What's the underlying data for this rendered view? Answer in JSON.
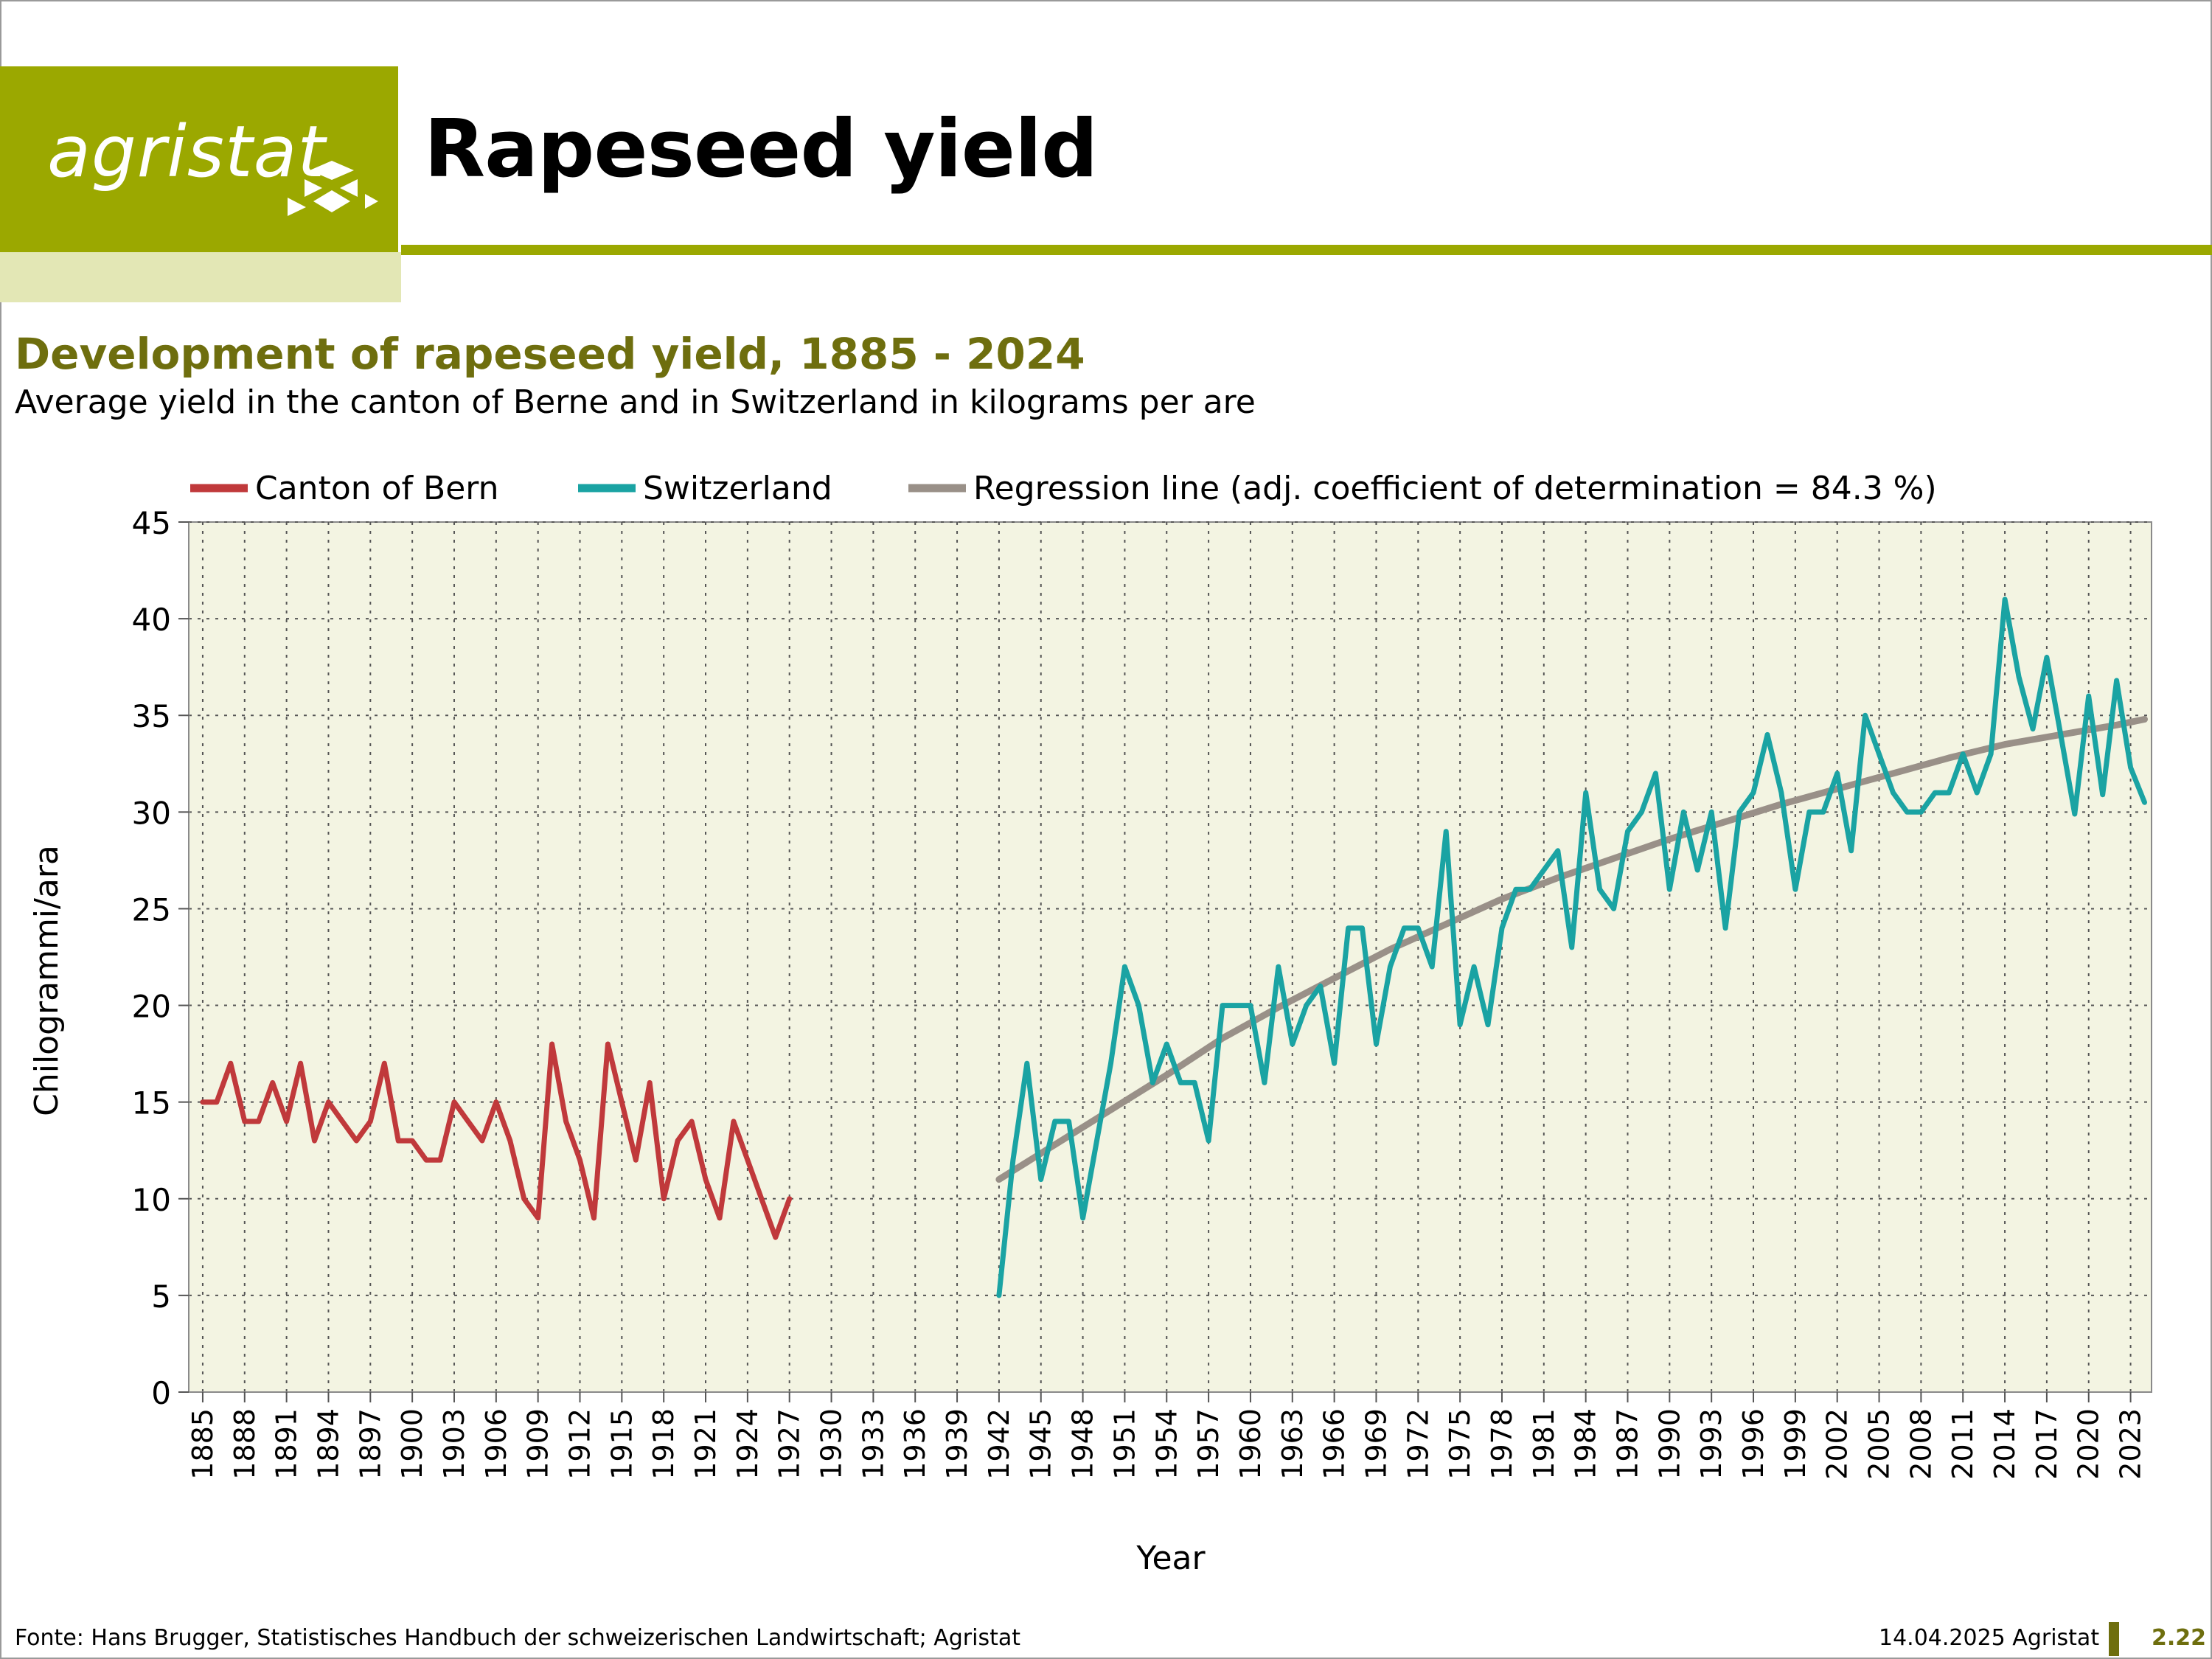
{
  "header": {
    "logo_text": "agristat",
    "page_title": "Rapeseed yield",
    "brand_color": "#9ba800"
  },
  "chart_data": {
    "type": "line",
    "title": "Development of rapeseed yield, 1885 - 2024",
    "subtitle": "Average yield in the canton of Berne and in Switzerland in kilograms per are",
    "xlabel": "Year",
    "ylabel": "Chilogrammi/ara",
    "xlim": [
      1884,
      2024.5
    ],
    "ylim": [
      0,
      45
    ],
    "yticks": [
      0,
      5,
      10,
      15,
      20,
      25,
      30,
      35,
      40,
      45
    ],
    "xtick_start": 1885,
    "xtick_step": 3,
    "xtick_end": 2023,
    "grid": true,
    "legend_position": "top",
    "series": [
      {
        "name": "Canton of Bern",
        "color": "#c0393b",
        "x": [
          1885,
          1886,
          1887,
          1888,
          1889,
          1890,
          1891,
          1892,
          1893,
          1894,
          1895,
          1896,
          1897,
          1898,
          1899,
          1900,
          1901,
          1902,
          1903,
          1904,
          1905,
          1906,
          1907,
          1908,
          1909,
          1910,
          1911,
          1912,
          1913,
          1914,
          1915,
          1916,
          1917,
          1918,
          1919,
          1920,
          1921,
          1922,
          1923,
          1924,
          1925,
          1926,
          1927
        ],
        "y": [
          15,
          15,
          17,
          14,
          14,
          16,
          14,
          17,
          13,
          15,
          14,
          13,
          14,
          17,
          13,
          13,
          12,
          12,
          15,
          14,
          13,
          15,
          13,
          10,
          9,
          18,
          14,
          12,
          9,
          18,
          15,
          12,
          16,
          10,
          13,
          14,
          11,
          9,
          14,
          12,
          10,
          8,
          10
        ]
      },
      {
        "name": "Switzerland",
        "color": "#1aa3a3",
        "x": [
          1942,
          1943,
          1944,
          1945,
          1946,
          1947,
          1948,
          1949,
          1950,
          1951,
          1952,
          1953,
          1954,
          1955,
          1956,
          1957,
          1958,
          1959,
          1960,
          1961,
          1962,
          1963,
          1964,
          1965,
          1966,
          1967,
          1968,
          1969,
          1970,
          1971,
          1972,
          1973,
          1974,
          1975,
          1976,
          1977,
          1978,
          1979,
          1980,
          1981,
          1982,
          1983,
          1984,
          1985,
          1986,
          1987,
          1988,
          1989,
          1990,
          1991,
          1992,
          1993,
          1994,
          1995,
          1996,
          1997,
          1998,
          1999,
          2000,
          2001,
          2002,
          2003,
          2004,
          2005,
          2006,
          2007,
          2008,
          2009,
          2010,
          2011,
          2012,
          2013,
          2014,
          2015,
          2016,
          2017,
          2018,
          2019,
          2020,
          2021,
          2022,
          2023,
          2024
        ],
        "y": [
          5,
          12,
          17,
          11,
          14,
          14,
          9,
          13,
          17,
          22,
          20,
          16,
          18,
          16,
          16,
          13,
          20,
          20,
          20,
          16,
          22,
          18,
          20,
          21,
          17,
          24,
          24,
          18,
          22,
          24,
          24,
          22,
          29,
          19,
          22,
          19,
          24,
          26,
          26,
          27,
          28,
          23,
          31,
          26,
          25,
          29,
          30,
          32,
          26,
          30,
          27,
          30,
          24,
          30,
          31,
          34,
          31,
          26,
          30,
          30,
          32,
          28,
          35,
          33,
          31,
          30,
          30,
          31,
          31,
          33,
          31,
          33,
          41,
          37,
          34.3,
          38,
          34,
          29.9,
          36,
          30.9,
          36.8,
          32.3,
          30.5
        ]
      },
      {
        "name": "Regression line (adj. coefficient of determination = 84.3 %)",
        "color": "#999088",
        "x": [
          1942,
          1946,
          1950,
          1954,
          1958,
          1962,
          1966,
          1970,
          1974,
          1978,
          1982,
          1986,
          1990,
          1994,
          1998,
          2002,
          2006,
          2010,
          2014,
          2018,
          2022,
          2024
        ],
        "y": [
          11,
          12.8,
          14.6,
          16.4,
          18.3,
          19.9,
          21.4,
          22.9,
          24.2,
          25.5,
          26.6,
          27.6,
          28.6,
          29.5,
          30.4,
          31.2,
          32,
          32.8,
          33.5,
          34,
          34.5,
          34.8
        ]
      }
    ]
  },
  "footer": {
    "source": "Fonte: Hans Brugger, Statistisches Handbuch der schweizerischen Landwirtschaft; Agristat",
    "date": "14.04.2025 Agristat",
    "page_number": "2.22"
  }
}
